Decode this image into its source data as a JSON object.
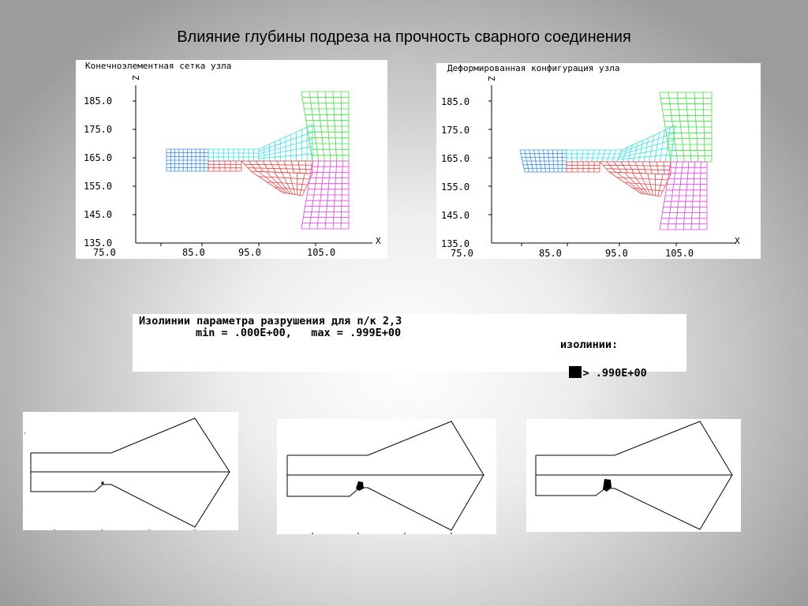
{
  "title": "Влияние глубины подреза на прочность сварного соединения",
  "mesh_panel": {
    "caption": "Конечноэлементная  сетка узла",
    "z_label": "Z",
    "x_label": "X",
    "y_ticks": [
      "185.0",
      "175.0",
      "165.0",
      "155.0",
      "145.0",
      "135.0"
    ],
    "x_ticks": [
      "75.0",
      "85.0",
      "95.0",
      "105.0"
    ]
  },
  "deformed_panel": {
    "caption": "Деформированная  конфигурация узла",
    "z_label": "Z",
    "x_label": "X",
    "y_ticks": [
      "185.0",
      "175.0",
      "165.0",
      "155.0",
      "145.0",
      "135.0"
    ],
    "x_ticks": [
      "75.0",
      "85.0",
      "95.0",
      "105.0"
    ]
  },
  "legend": {
    "line1": "Изолинии параметра разрушения для п/к 2,3",
    "line2": "min = .000E+00,   max = .999E+00",
    "line3": "изолинии:",
    "line4": "> .990E+00"
  },
  "colors": {
    "blue": "#3b8fe0",
    "cyan": "#35e0e8",
    "red": "#e84545",
    "green": "#3fe03f",
    "magenta": "#e040e0"
  }
}
